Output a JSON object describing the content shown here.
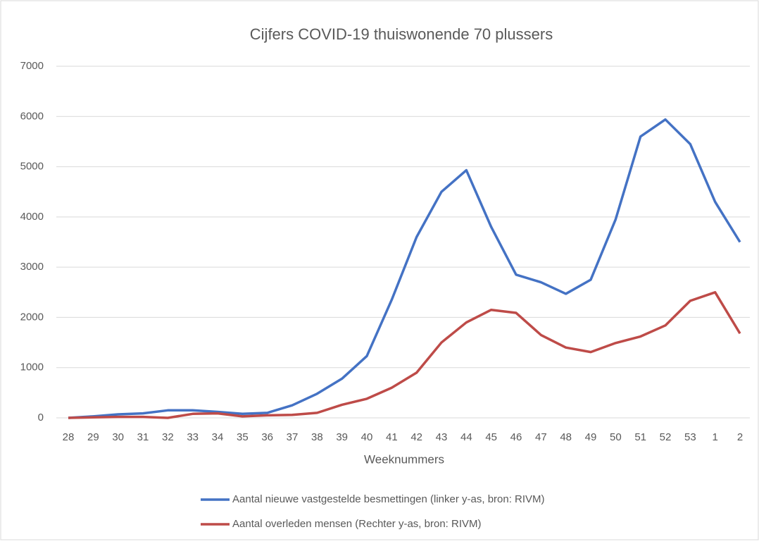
{
  "chart_data": {
    "type": "line",
    "title": "Cijfers COVID-19 thuiswonende 70 plussers",
    "x_label": "Weeknummers",
    "categories": [
      "28",
      "29",
      "30",
      "31",
      "32",
      "33",
      "34",
      "35",
      "36",
      "37",
      "38",
      "39",
      "40",
      "41",
      "42",
      "43",
      "44",
      "45",
      "46",
      "47",
      "48",
      "49",
      "50",
      "51",
      "52",
      "53",
      "1",
      "2"
    ],
    "series": [
      {
        "name": "Aantal nieuwe vastgestelde besmettingen (linker y-as, bron: RIVM)",
        "color": "#4472c4",
        "values": [
          0,
          30,
          70,
          90,
          150,
          150,
          120,
          80,
          100,
          250,
          480,
          780,
          1230,
          2350,
          3600,
          4500,
          4930,
          3800,
          2850,
          2700,
          2470,
          2750,
          3950,
          5600,
          5940,
          5450,
          4300,
          3500
        ]
      },
      {
        "name": "Aantal overleden mensen (Rechter y-as, bron: RIVM)",
        "color": "#be4b48",
        "values": [
          0,
          10,
          20,
          20,
          0,
          80,
          90,
          30,
          50,
          60,
          100,
          260,
          380,
          600,
          900,
          1500,
          1900,
          2150,
          2090,
          1650,
          1400,
          1310,
          1490,
          1620,
          1840,
          2330,
          2500,
          1680
        ]
      }
    ],
    "ylim": [
      0,
      7000
    ],
    "yticks": [
      0,
      1000,
      2000,
      3000,
      4000,
      5000,
      6000,
      7000
    ],
    "grid": true,
    "legend": "bottom"
  }
}
